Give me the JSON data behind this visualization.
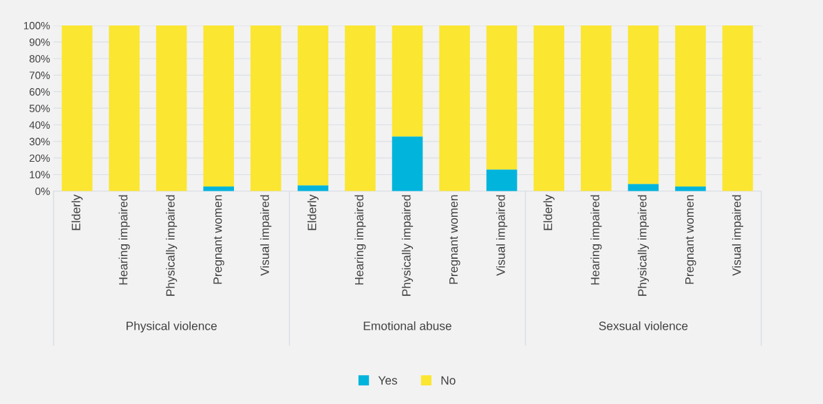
{
  "chart_data": {
    "type": "bar",
    "stacked": true,
    "categories": [
      "Elderly",
      "Hearing impaired",
      "Physically impaired",
      "Pregnant women",
      "Visual impaired",
      "Elderly",
      "Hearing impaired",
      "Physically impaired",
      "Pregnant women",
      "Visual impaired",
      "Elderly",
      "Hearing impaired",
      "Physically impaired",
      "Pregnant women",
      "Visual impaired"
    ],
    "series": [
      {
        "name": "Yes",
        "color": "#00b4dc",
        "values": [
          0,
          0,
          0,
          2.8,
          0,
          3.5,
          0,
          33,
          0,
          13,
          0,
          0,
          4.3,
          2.8,
          0
        ]
      },
      {
        "name": "No",
        "color": "#fbe632",
        "values": [
          100,
          100,
          100,
          97.2,
          100,
          96.5,
          100,
          67,
          100,
          87,
          100,
          100,
          95.7,
          97.2,
          100
        ]
      }
    ],
    "annotations": [
      "Physical violence",
      "Emotional abuse",
      "Sexsual violence"
    ],
    "ylim": [
      0,
      100
    ],
    "yticks": [
      {
        "value": 0,
        "label": "0%"
      },
      {
        "value": 10,
        "label": "10%"
      },
      {
        "value": 20,
        "label": "20%"
      },
      {
        "value": 30,
        "label": "30%"
      },
      {
        "value": 40,
        "label": "40%"
      },
      {
        "value": 50,
        "label": "50%"
      },
      {
        "value": 60,
        "label": "60%"
      },
      {
        "value": 70,
        "label": "70%"
      },
      {
        "value": 80,
        "label": "80%"
      },
      {
        "value": 90,
        "label": "90%"
      },
      {
        "value": 100,
        "label": "100%"
      }
    ],
    "grid": "y",
    "legend": "bottom"
  }
}
